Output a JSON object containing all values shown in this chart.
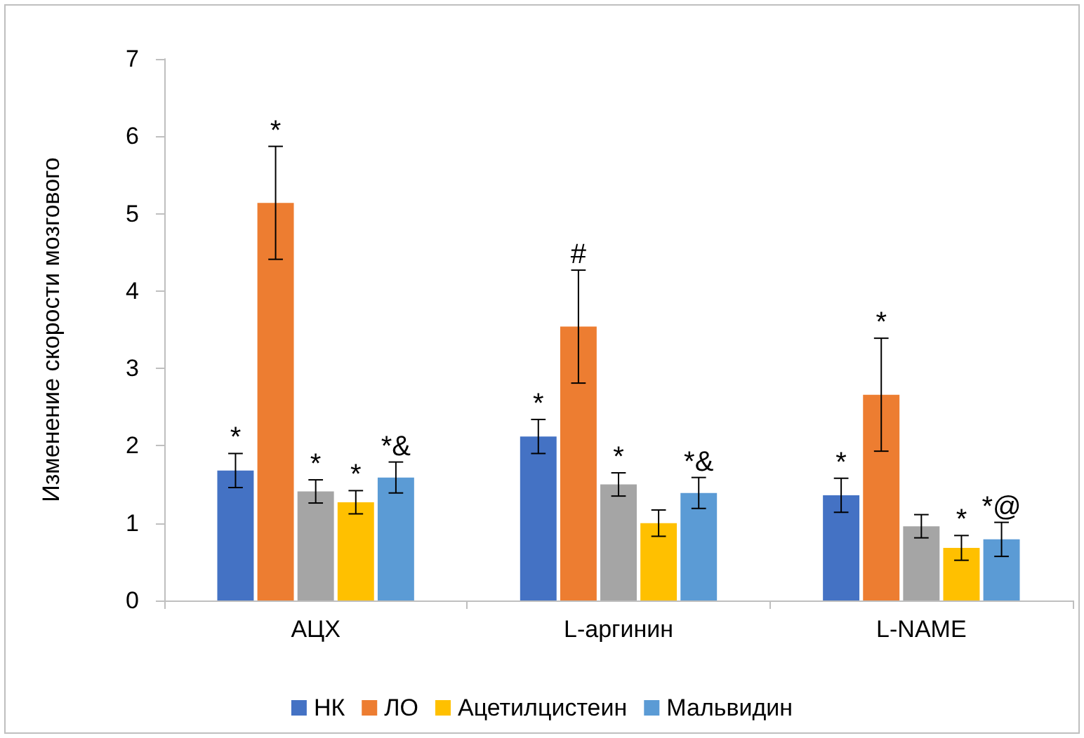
{
  "chart_data": {
    "type": "bar",
    "ylabel": "Изменение скорости мозгового",
    "categories": [
      "АЦХ",
      "L-аргинин",
      "L-NAME"
    ],
    "series": [
      {
        "name": "НК",
        "color": "#4472c4",
        "values": [
          1.68,
          2.12,
          1.36
        ],
        "errors": [
          0.22,
          0.22,
          0.22
        ],
        "value_labels": [
          "*",
          "*",
          "*"
        ]
      },
      {
        "name": "ЛО",
        "color": "#ed7d31",
        "values": [
          5.14,
          3.54,
          2.66
        ],
        "errors": [
          0.73,
          0.73,
          0.73
        ],
        "value_labels": [
          "*",
          "#",
          "*"
        ]
      },
      {
        "color": "#a5a5a5",
        "values": [
          1.41,
          1.5,
          0.96
        ],
        "errors": [
          0.15,
          0.15,
          0.15
        ],
        "value_labels": [
          "*",
          "*",
          null
        ]
      },
      {
        "name": "Ацетилцистеин",
        "color": "#ffc000",
        "values": [
          1.27,
          1.0,
          0.68
        ],
        "errors": [
          0.15,
          0.17,
          0.16
        ],
        "value_labels": [
          "*",
          null,
          "*"
        ]
      },
      {
        "name": "Мальвидин",
        "color": "#5b9bd5",
        "values": [
          1.59,
          1.39,
          0.79
        ],
        "errors": [
          0.2,
          0.2,
          0.22
        ],
        "value_labels": [
          "*&",
          "*&",
          "*@"
        ]
      }
    ],
    "ylim": [
      0,
      7
    ],
    "yticks": [
      0,
      1,
      2,
      3,
      4,
      5,
      6,
      7
    ],
    "grid": false,
    "legend": "bottom"
  }
}
